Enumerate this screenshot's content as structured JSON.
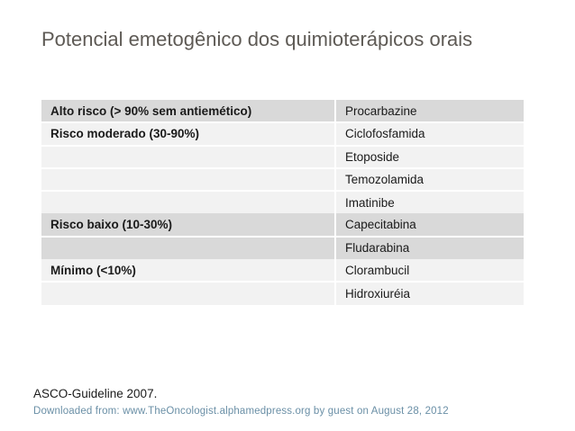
{
  "title": "Potencial emetogênico dos quimioterápicos orais",
  "table": {
    "rows": [
      {
        "category": "Alto risco (> 90% sem antiemético)",
        "drug": "Procarbazine"
      },
      {
        "category": "Risco moderado (30-90%)",
        "drug": "Ciclofosfamida"
      },
      {
        "category": "",
        "drug": "Etoposide"
      },
      {
        "category": "",
        "drug": "Temozolamida"
      },
      {
        "category": "",
        "drug": "Imatinibe"
      },
      {
        "category": "Risco baixo (10-30%)",
        "drug": "Capecitabina"
      },
      {
        "category": "",
        "drug": "Fludarabina"
      },
      {
        "category": "Mínimo (<10%)",
        "drug": "Clorambucil"
      },
      {
        "category": "",
        "drug": "Hidroxiuréia"
      }
    ]
  },
  "reference": "ASCO-Guideline 2007.",
  "footer": "Downloaded  from:  www.TheOncologist.alphamedpress.org by guest on August 28, 2012",
  "colors": {
    "title": "#5e5a55",
    "row_dark": "#d9d9d9",
    "row_light": "#f2f2f2",
    "footer_link": "#6a8fa6"
  }
}
